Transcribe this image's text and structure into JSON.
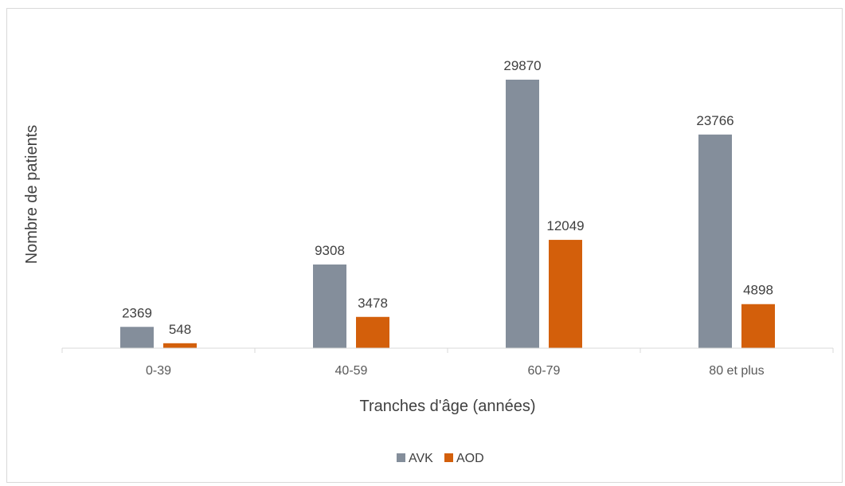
{
  "chart_data": {
    "type": "bar",
    "categories": [
      "0-39",
      "40-59",
      "60-79",
      "80 et plus"
    ],
    "series": [
      {
        "name": "AVK",
        "values": [
          2369,
          9308,
          29870,
          23766
        ],
        "color": "#848e9b"
      },
      {
        "name": "AOD",
        "values": [
          548,
          3478,
          12049,
          4898
        ],
        "color": "#d35f0b"
      }
    ],
    "xlabel": "Tranches d'âge (années)",
    "ylabel": "Nombre de patients",
    "ylim": [
      0,
      30000
    ],
    "grid": false,
    "legend_position": "bottom"
  }
}
